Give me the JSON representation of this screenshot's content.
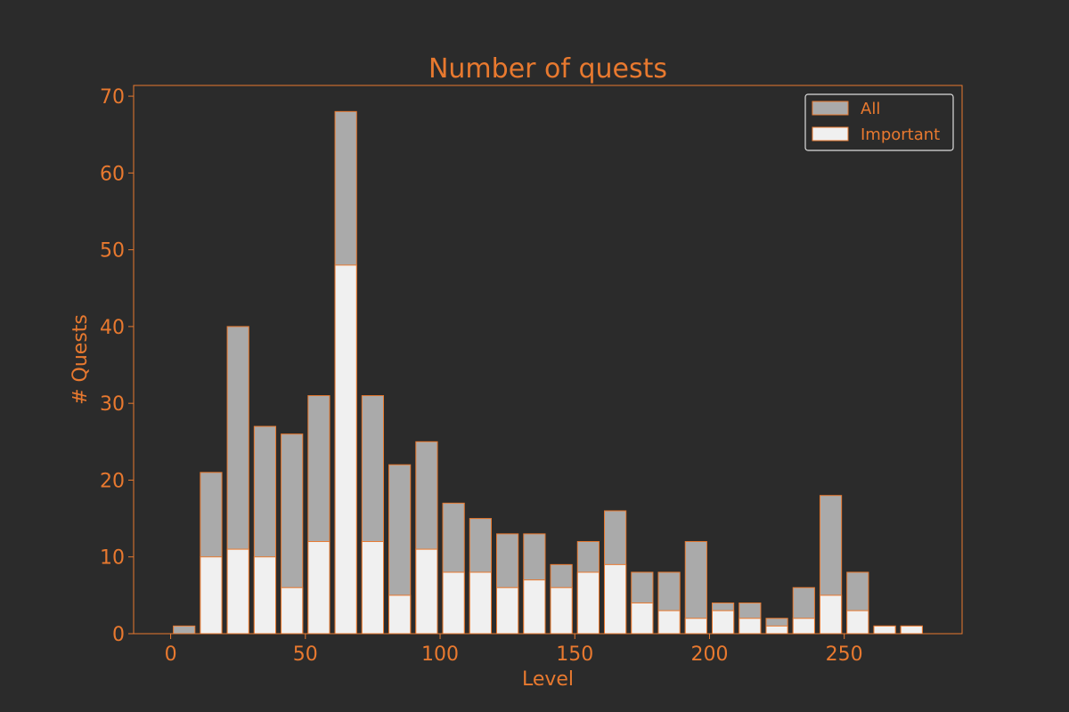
{
  "chart_data": {
    "type": "bar",
    "title": "Number of quests",
    "xlabel": "Level",
    "ylabel": "# Quests",
    "xlim": [
      -13.75,
      293.75
    ],
    "ylim": [
      0,
      71.4
    ],
    "xticks": [
      0,
      50,
      100,
      150,
      200,
      250
    ],
    "yticks": [
      0,
      10,
      20,
      30,
      40,
      50,
      60,
      70
    ],
    "bar_width": 8,
    "grid": false,
    "legend": "upper right",
    "x": [
      5,
      15,
      25,
      35,
      45,
      55,
      65,
      75,
      85,
      95,
      105,
      115,
      125,
      135,
      145,
      155,
      165,
      175,
      185,
      195,
      205,
      215,
      225,
      235,
      245,
      255,
      265,
      275
    ],
    "series": [
      {
        "name": "All",
        "values": [
          1,
          21,
          40,
          27,
          26,
          31,
          68,
          31,
          22,
          25,
          17,
          15,
          13,
          13,
          9,
          12,
          16,
          8,
          8,
          12,
          4,
          4,
          2,
          6,
          18,
          8,
          1,
          1
        ]
      },
      {
        "name": "Important",
        "values": [
          0,
          10,
          11,
          10,
          6,
          12,
          48,
          12,
          5,
          11,
          8,
          8,
          6,
          7,
          6,
          8,
          9,
          4,
          3,
          2,
          3,
          2,
          1,
          2,
          5,
          3,
          1,
          1
        ]
      }
    ],
    "colors": {
      "background": "#2b2b2b",
      "accent": "#e8792f",
      "all_fill": "#aaaaaa",
      "important_fill": "#f0f0f0",
      "legend_border": "#dddddd"
    }
  }
}
